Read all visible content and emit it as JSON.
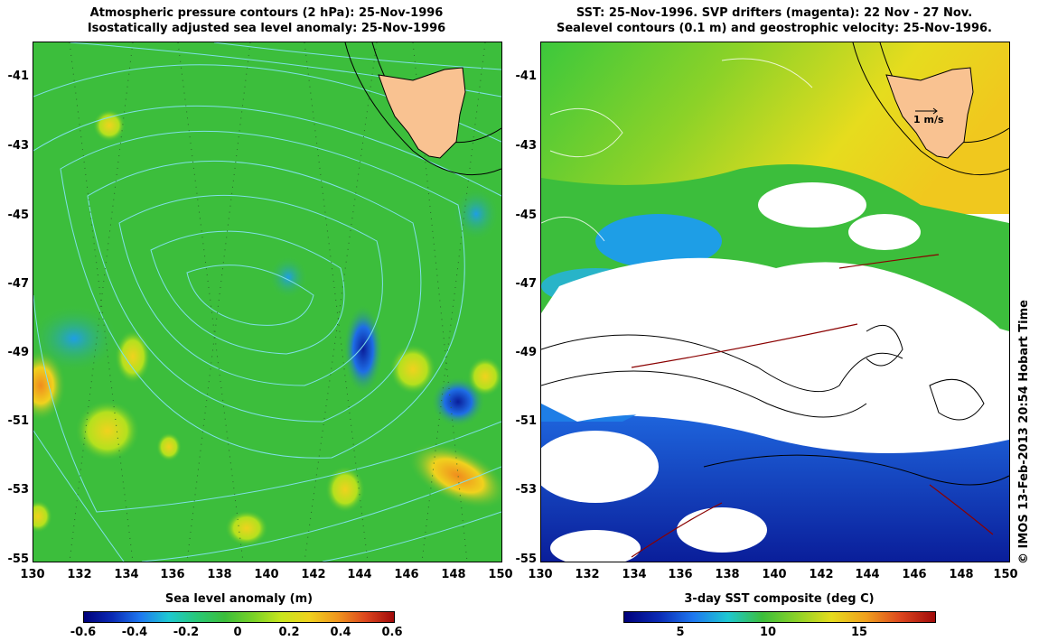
{
  "left": {
    "title1": "Atmospheric pressure contours (2 hPa): 25-Nov-1996",
    "title2": "Isostatically adjusted sea level anomaly: 25-Nov-1996",
    "colorbar_title": "Sea level anomaly (m)",
    "colorbar_ticks": [
      "-0.6",
      "-0.4",
      "-0.2",
      "0",
      "0.2",
      "0.4",
      "0.6"
    ]
  },
  "right": {
    "title1": "SST: 25-Nov-1996. SVP drifters (magenta): 22 Nov - 27 Nov.",
    "title2": "Sealevel contours (0.1 m) and geostrophic velocity: 25-Nov-1996.",
    "colorbar_title": "3-day SST composite (deg C)",
    "colorbar_ticks": [
      "5",
      "10",
      "15"
    ],
    "velocity_scale_label": "1 m/s"
  },
  "lat_ticks": [
    "-41",
    "-43",
    "-45",
    "-47",
    "-49",
    "-51",
    "-53",
    "-55"
  ],
  "lon_ticks": [
    "130",
    "132",
    "134",
    "136",
    "138",
    "140",
    "142",
    "144",
    "146",
    "148",
    "150"
  ],
  "credit": "© IMOS 13-Feb-2013 20:54 Hobart Time",
  "colors": {
    "land": "#f9c291",
    "sla_background": "#3cbe3c",
    "sst_cold": "#1a2fa8",
    "cloud": "#ffffff",
    "contour": "#7fe0e8"
  }
}
